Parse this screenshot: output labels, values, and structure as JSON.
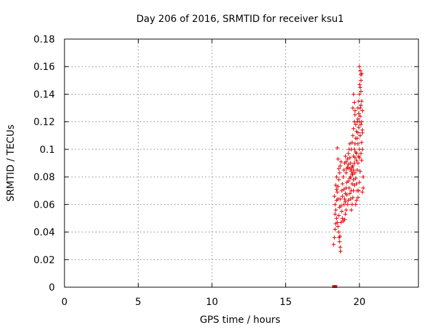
{
  "chart_data": {
    "type": "scatter",
    "title": "Day 206 of 2016, SRMTID for receiver ksu1",
    "xlabel": "GPS time / hours",
    "ylabel": "SRMTID / TECUs",
    "xlim": [
      0,
      24
    ],
    "ylim": [
      0,
      0.18
    ],
    "xticks": [
      0,
      5,
      10,
      15,
      20
    ],
    "xtick_labels": [
      "0",
      "5",
      "10",
      "15",
      "20"
    ],
    "yticks": [
      0,
      0.02,
      0.04,
      0.06,
      0.08,
      0.1,
      0.12,
      0.14,
      0.16,
      0.18
    ],
    "ytick_labels": [
      "0",
      "0.02",
      "0.04",
      "0.06",
      "0.08",
      "0.1",
      "0.12",
      "0.14",
      "0.16",
      "0.18"
    ],
    "grid": true,
    "marker": "+",
    "color": "#e00000",
    "series": [
      {
        "name": "SRMTID",
        "points": [
          [
            18.3,
            0.0
          ],
          [
            18.32,
            0.0
          ],
          [
            18.35,
            0.0
          ],
          [
            18.25,
            0.031
          ],
          [
            18.3,
            0.036
          ],
          [
            18.35,
            0.042
          ],
          [
            18.4,
            0.046
          ],
          [
            18.45,
            0.05
          ],
          [
            18.5,
            0.047
          ],
          [
            18.55,
            0.044
          ],
          [
            18.6,
            0.04
          ],
          [
            18.62,
            0.036
          ],
          [
            18.65,
            0.033
          ],
          [
            18.7,
            0.029
          ],
          [
            18.72,
            0.026
          ],
          [
            18.68,
            0.037
          ],
          [
            18.6,
            0.052
          ],
          [
            18.3,
            0.066
          ],
          [
            18.35,
            0.06
          ],
          [
            18.4,
            0.056
          ],
          [
            18.45,
            0.063
          ],
          [
            18.5,
            0.069
          ],
          [
            18.55,
            0.073
          ],
          [
            18.6,
            0.078
          ],
          [
            18.65,
            0.083
          ],
          [
            18.7,
            0.088
          ],
          [
            18.75,
            0.091
          ],
          [
            18.5,
            0.101
          ],
          [
            18.55,
            0.093
          ],
          [
            18.6,
            0.086
          ],
          [
            18.45,
            0.08
          ],
          [
            18.4,
            0.074
          ],
          [
            18.7,
            0.064
          ],
          [
            18.75,
            0.059
          ],
          [
            18.8,
            0.055
          ],
          [
            18.85,
            0.05
          ],
          [
            18.9,
            0.048
          ],
          [
            18.8,
            0.07
          ],
          [
            18.85,
            0.075
          ],
          [
            18.9,
            0.08
          ],
          [
            18.95,
            0.085
          ],
          [
            19.0,
            0.09
          ],
          [
            18.95,
            0.06
          ],
          [
            19.0,
            0.064
          ],
          [
            19.05,
            0.068
          ],
          [
            19.1,
            0.072
          ],
          [
            19.15,
            0.076
          ],
          [
            19.0,
            0.049
          ],
          [
            19.05,
            0.053
          ],
          [
            19.1,
            0.056
          ],
          [
            19.2,
            0.06
          ],
          [
            19.25,
            0.063
          ],
          [
            19.1,
            0.083
          ],
          [
            19.15,
            0.086
          ],
          [
            19.2,
            0.087
          ],
          [
            19.25,
            0.089
          ],
          [
            19.3,
            0.086
          ],
          [
            19.2,
            0.093
          ],
          [
            19.25,
            0.097
          ],
          [
            19.3,
            0.1
          ],
          [
            19.35,
            0.094
          ],
          [
            19.4,
            0.09
          ],
          [
            19.3,
            0.072
          ],
          [
            19.35,
            0.068
          ],
          [
            19.4,
            0.064
          ],
          [
            19.45,
            0.07
          ],
          [
            19.5,
            0.075
          ],
          [
            19.4,
            0.08
          ],
          [
            19.45,
            0.084
          ],
          [
            19.5,
            0.087
          ],
          [
            19.55,
            0.082
          ],
          [
            19.6,
            0.078
          ],
          [
            19.45,
            0.056
          ],
          [
            19.5,
            0.06
          ],
          [
            19.55,
            0.065
          ],
          [
            19.6,
            0.07
          ],
          [
            19.65,
            0.074
          ],
          [
            19.5,
            0.105
          ],
          [
            19.55,
            0.11
          ],
          [
            19.6,
            0.115
          ],
          [
            19.65,
            0.12
          ],
          [
            19.7,
            0.125
          ],
          [
            19.55,
            0.13
          ],
          [
            19.6,
            0.14
          ],
          [
            19.65,
            0.134
          ],
          [
            19.7,
            0.128
          ],
          [
            19.75,
            0.118
          ],
          [
            19.6,
            0.095
          ],
          [
            19.65,
            0.1
          ],
          [
            19.7,
            0.104
          ],
          [
            19.75,
            0.098
          ],
          [
            19.8,
            0.092
          ],
          [
            19.7,
            0.083
          ],
          [
            19.75,
            0.079
          ],
          [
            19.8,
            0.075
          ],
          [
            19.85,
            0.07
          ],
          [
            19.8,
            0.063
          ],
          [
            19.75,
            0.06
          ],
          [
            19.85,
            0.085
          ],
          [
            19.9,
            0.09
          ],
          [
            19.95,
            0.095
          ],
          [
            20.0,
            0.1
          ],
          [
            19.85,
            0.108
          ],
          [
            19.9,
            0.112
          ],
          [
            19.95,
            0.116
          ],
          [
            20.0,
            0.12
          ],
          [
            20.05,
            0.124
          ],
          [
            19.9,
            0.13
          ],
          [
            19.95,
            0.135
          ],
          [
            20.0,
            0.14
          ],
          [
            20.05,
            0.145
          ],
          [
            20.1,
            0.15
          ],
          [
            20.0,
            0.16
          ],
          [
            20.05,
            0.157
          ],
          [
            20.1,
            0.154
          ],
          [
            20.15,
            0.155
          ],
          [
            20.02,
            0.147
          ],
          [
            20.1,
            0.142
          ],
          [
            20.15,
            0.135
          ],
          [
            20.2,
            0.128
          ],
          [
            20.15,
            0.12
          ],
          [
            20.2,
            0.112
          ],
          [
            20.1,
            0.118
          ],
          [
            20.05,
            0.11
          ],
          [
            20.15,
            0.105
          ],
          [
            20.2,
            0.1
          ],
          [
            20.1,
            0.097
          ],
          [
            20.0,
            0.094
          ],
          [
            20.25,
            0.08
          ],
          [
            20.25,
            0.072
          ],
          [
            20.2,
            0.069
          ],
          [
            20.15,
            0.092
          ],
          [
            19.95,
            0.07
          ],
          [
            19.9,
            0.065
          ],
          [
            20.0,
            0.076
          ],
          [
            20.05,
            0.084
          ],
          [
            19.35,
            0.079
          ],
          [
            19.25,
            0.077
          ],
          [
            19.15,
            0.067
          ],
          [
            19.05,
            0.062
          ],
          [
            18.95,
            0.071
          ],
          [
            18.85,
            0.066
          ],
          [
            18.75,
            0.047
          ],
          [
            18.65,
            0.058
          ],
          [
            18.55,
            0.064
          ],
          [
            18.45,
            0.071
          ],
          [
            18.35,
            0.053
          ],
          [
            19.05,
            0.095
          ],
          [
            19.1,
            0.091
          ],
          [
            19.35,
            0.104
          ],
          [
            19.45,
            0.1
          ],
          [
            19.55,
            0.088
          ],
          [
            19.65,
            0.09
          ],
          [
            19.75,
            0.108
          ],
          [
            19.8,
            0.113
          ],
          [
            19.85,
            0.12
          ],
          [
            19.9,
            0.122
          ],
          [
            19.95,
            0.126
          ],
          [
            20.05,
            0.13
          ],
          [
            20.1,
            0.132
          ],
          [
            20.2,
            0.114
          ],
          [
            19.9,
            0.104
          ],
          [
            19.8,
            0.097
          ],
          [
            19.7,
            0.094
          ],
          [
            19.6,
            0.085
          ],
          [
            19.5,
            0.082
          ],
          [
            19.4,
            0.086
          ]
        ]
      }
    ]
  }
}
